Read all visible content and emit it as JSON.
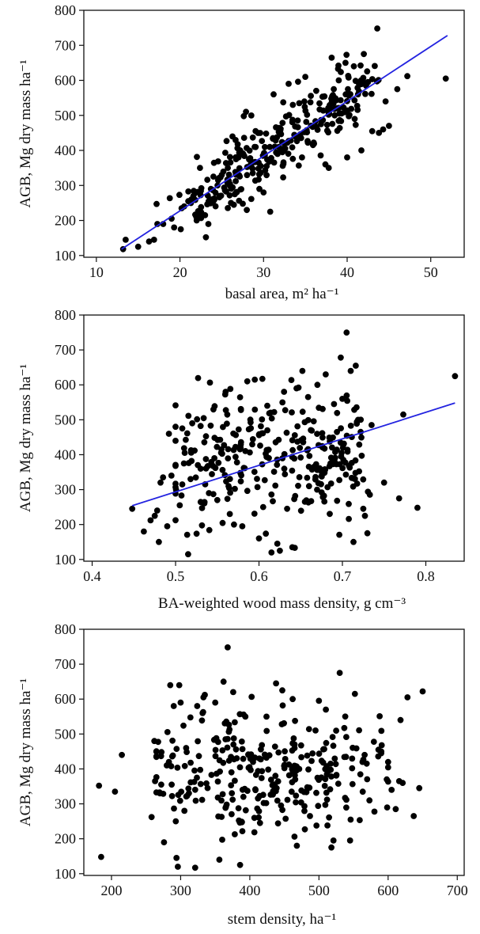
{
  "chart_data": [
    {
      "type": "scatter",
      "xlabel": "basal area, m² ha⁻¹",
      "ylabel": "AGB, Mg dry mass ha⁻¹",
      "xlim": [
        8.5,
        54
      ],
      "ylim": [
        95,
        800
      ],
      "xticks": [
        10,
        20,
        30,
        40,
        50
      ],
      "yticks": [
        100,
        200,
        300,
        400,
        500,
        600,
        700,
        800
      ],
      "fit_line": {
        "x1": 13,
        "y1": 118,
        "x2": 52,
        "y2": 728,
        "color": "#2323e0"
      },
      "seed": 11,
      "n_points": 340,
      "points": [
        [
          13.2,
          118
        ],
        [
          13.5,
          145
        ],
        [
          15.0,
          125
        ],
        [
          16.3,
          140
        ],
        [
          16.9,
          145
        ],
        [
          17.3,
          190
        ],
        [
          17.2,
          247
        ],
        [
          18.0,
          190
        ],
        [
          19.0,
          205
        ],
        [
          19.3,
          180
        ],
        [
          20.1,
          175
        ],
        [
          20.5,
          240
        ],
        [
          21.0,
          255
        ],
        [
          21.6,
          270
        ],
        [
          22.0,
          200
        ],
        [
          22.4,
          350
        ],
        [
          23.0,
          215
        ],
        [
          23.4,
          190
        ],
        [
          23.7,
          290
        ],
        [
          24.5,
          300
        ],
        [
          25.0,
          330
        ],
        [
          26.1,
          250
        ],
        [
          27.0,
          380
        ],
        [
          27.2,
          400
        ],
        [
          27.9,
          510
        ],
        [
          28.0,
          230
        ],
        [
          29.5,
          290
        ],
        [
          30.0,
          280
        ],
        [
          30.8,
          225
        ],
        [
          31.2,
          560
        ],
        [
          33.0,
          590
        ],
        [
          33.5,
          530
        ],
        [
          34.6,
          380
        ],
        [
          35.0,
          610
        ],
        [
          36.3,
          570
        ],
        [
          37.4,
          360
        ],
        [
          37.8,
          350
        ],
        [
          39.0,
          600
        ],
        [
          39.8,
          650
        ],
        [
          40.0,
          380
        ],
        [
          40.8,
          640
        ],
        [
          41.3,
          560
        ],
        [
          41.7,
          400
        ],
        [
          42.0,
          675
        ],
        [
          42.5,
          595
        ],
        [
          43.0,
          455
        ],
        [
          43.6,
          748
        ],
        [
          43.8,
          450
        ],
        [
          44.3,
          460
        ],
        [
          44.6,
          540
        ],
        [
          45.0,
          470
        ],
        [
          46.0,
          575
        ],
        [
          47.2,
          612
        ],
        [
          51.8,
          605
        ]
      ]
    },
    {
      "type": "scatter",
      "xlabel": "BA-weighted wood mass density, g cm⁻³",
      "ylabel": "AGB, Mg dry mass ha⁻¹",
      "xlim": [
        0.39,
        0.846
      ],
      "ylim": [
        95,
        800
      ],
      "xticks": [
        "0.4",
        "0.5",
        "0.6",
        "0.7",
        "0.8"
      ],
      "yticks": [
        100,
        200,
        300,
        400,
        500,
        600,
        700,
        800
      ],
      "fit_line": {
        "x1": 0.448,
        "y1": 254,
        "x2": 0.835,
        "y2": 548,
        "color": "#2323e0"
      },
      "seed": 23,
      "n_points": 340,
      "points": [
        [
          0.448,
          245
        ],
        [
          0.462,
          180
        ],
        [
          0.47,
          212
        ],
        [
          0.475,
          225
        ],
        [
          0.478,
          240
        ],
        [
          0.48,
          150
        ],
        [
          0.482,
          320
        ],
        [
          0.485,
          335
        ],
        [
          0.49,
          195
        ],
        [
          0.492,
          460
        ],
        [
          0.495,
          340
        ],
        [
          0.5,
          368
        ],
        [
          0.505,
          255
        ],
        [
          0.508,
          315
        ],
        [
          0.51,
          375
        ],
        [
          0.515,
          115
        ],
        [
          0.518,
          330
        ],
        [
          0.52,
          490
        ],
        [
          0.53,
          360
        ],
        [
          0.54,
          290
        ],
        [
          0.55,
          270
        ],
        [
          0.555,
          415
        ],
        [
          0.56,
          580
        ],
        [
          0.565,
          230
        ],
        [
          0.57,
          200
        ],
        [
          0.58,
          195
        ],
        [
          0.586,
          610
        ],
        [
          0.595,
          615
        ],
        [
          0.6,
          160
        ],
        [
          0.605,
          250
        ],
        [
          0.61,
          470
        ],
        [
          0.615,
          120
        ],
        [
          0.622,
          145
        ],
        [
          0.625,
          125
        ],
        [
          0.63,
          580
        ],
        [
          0.64,
          135
        ],
        [
          0.645,
          590
        ],
        [
          0.652,
          640
        ],
        [
          0.66,
          310
        ],
        [
          0.67,
          600
        ],
        [
          0.68,
          630
        ],
        [
          0.69,
          545
        ],
        [
          0.698,
          678
        ],
        [
          0.7,
          560
        ],
        [
          0.705,
          750
        ],
        [
          0.71,
          640
        ],
        [
          0.716,
          655
        ],
        [
          0.722,
          500
        ],
        [
          0.725,
          245
        ],
        [
          0.727,
          225
        ],
        [
          0.73,
          175
        ],
        [
          0.735,
          485
        ],
        [
          0.75,
          320
        ],
        [
          0.768,
          275
        ],
        [
          0.773,
          515
        ],
        [
          0.79,
          248
        ],
        [
          0.835,
          625
        ]
      ]
    },
    {
      "type": "scatter",
      "xlabel": "stem density, ha⁻¹",
      "ylabel": "AGB, Mg dry mass ha⁻¹",
      "xlim": [
        160,
        710
      ],
      "ylim": [
        95,
        800
      ],
      "xticks": [
        200,
        300,
        400,
        500,
        600,
        700
      ],
      "yticks": [
        100,
        200,
        300,
        400,
        500,
        600,
        700,
        800
      ],
      "fit_line": null,
      "seed": 37,
      "n_points": 340,
      "points": [
        [
          182,
          352
        ],
        [
          185,
          148
        ],
        [
          205,
          335
        ],
        [
          215,
          440
        ],
        [
          258,
          262
        ],
        [
          262,
          480
        ],
        [
          263,
          365
        ],
        [
          270,
          330
        ],
        [
          272,
          355
        ],
        [
          276,
          190
        ],
        [
          280,
          410
        ],
        [
          283,
          420
        ],
        [
          285,
          640
        ],
        [
          287,
          355
        ],
        [
          290,
          580
        ],
        [
          293,
          250
        ],
        [
          294,
          145
        ],
        [
          296,
          120
        ],
        [
          298,
          640
        ],
        [
          300,
          590
        ],
        [
          308,
          460
        ],
        [
          312,
          330
        ],
        [
          321,
          117
        ],
        [
          324,
          580
        ],
        [
          333,
          605
        ],
        [
          335,
          612
        ],
        [
          350,
          590
        ],
        [
          356,
          140
        ],
        [
          362,
          650
        ],
        [
          368,
          748
        ],
        [
          376,
          620
        ],
        [
          386,
          125
        ],
        [
          398,
          440
        ],
        [
          438,
          645
        ],
        [
          447,
          625
        ],
        [
          462,
          600
        ],
        [
          468,
          180
        ],
        [
          487,
          265
        ],
        [
          495,
          510
        ],
        [
          500,
          595
        ],
        [
          510,
          570
        ],
        [
          518,
          175
        ],
        [
          521,
          195
        ],
        [
          530,
          675
        ],
        [
          538,
          550
        ],
        [
          545,
          195
        ],
        [
          552,
          615
        ],
        [
          563,
          420
        ],
        [
          566,
          440
        ],
        [
          573,
          310
        ],
        [
          586,
          455
        ],
        [
          590,
          445
        ],
        [
          598,
          370
        ],
        [
          605,
          340
        ],
        [
          611,
          285
        ],
        [
          616,
          365
        ],
        [
          618,
          540
        ],
        [
          621,
          360
        ],
        [
          628,
          605
        ],
        [
          637,
          265
        ],
        [
          645,
          345
        ],
        [
          650,
          622
        ]
      ]
    }
  ]
}
